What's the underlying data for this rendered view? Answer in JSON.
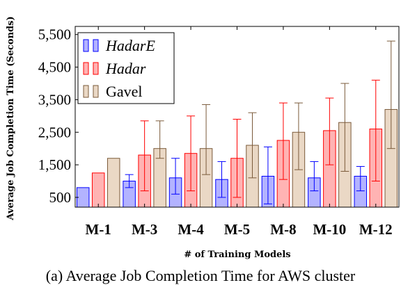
{
  "chart_data": {
    "type": "bar",
    "ylabel": "Average Job Completion Time (Seconds)",
    "xlabel": "# of Training Models",
    "ylim": [
      200,
      5750
    ],
    "yticks": [
      500,
      1500,
      2500,
      3500,
      4500,
      5500
    ],
    "ytick_labels": [
      "500",
      "1,500",
      "2,500",
      "3,500",
      "4,500",
      "5,500"
    ],
    "categories": [
      "M-1",
      "M-3",
      "M-4",
      "M-5",
      "M-8",
      "M-10",
      "M-12"
    ],
    "legend_position": "top-left",
    "grid": false,
    "series": [
      {
        "name": "HadarE",
        "italic": true,
        "fill": "#b3b3ff",
        "stroke": "#0000ff",
        "values": [
          800,
          1000,
          1100,
          1050,
          1150,
          1100,
          1150
        ],
        "err_low": [
          0,
          800,
          600,
          500,
          300,
          700,
          700
        ],
        "err_high": [
          0,
          1200,
          1700,
          1600,
          2050,
          1600,
          1450
        ]
      },
      {
        "name": "Hadar",
        "italic": true,
        "fill": "#ffb3b3",
        "stroke": "#ff0000",
        "values": [
          1250,
          1800,
          1850,
          1700,
          2250,
          2550,
          2600
        ],
        "err_low": [
          0,
          700,
          700,
          500,
          1050,
          1500,
          1000
        ],
        "err_high": [
          0,
          2850,
          3000,
          2900,
          3400,
          3550,
          4100
        ]
      },
      {
        "name": "Gavel",
        "italic": false,
        "fill": "#ead8c5",
        "stroke": "#7a5a3a",
        "values": [
          1700,
          2000,
          2000,
          2100,
          2500,
          2800,
          3200
        ],
        "err_low": [
          0,
          1700,
          1200,
          1100,
          1350,
          1300,
          2000
        ],
        "err_high": [
          0,
          2850,
          3350,
          3100,
          3400,
          4000,
          5300
        ]
      }
    ]
  },
  "caption": "(a) Average Job Completion Time for AWS cluster"
}
